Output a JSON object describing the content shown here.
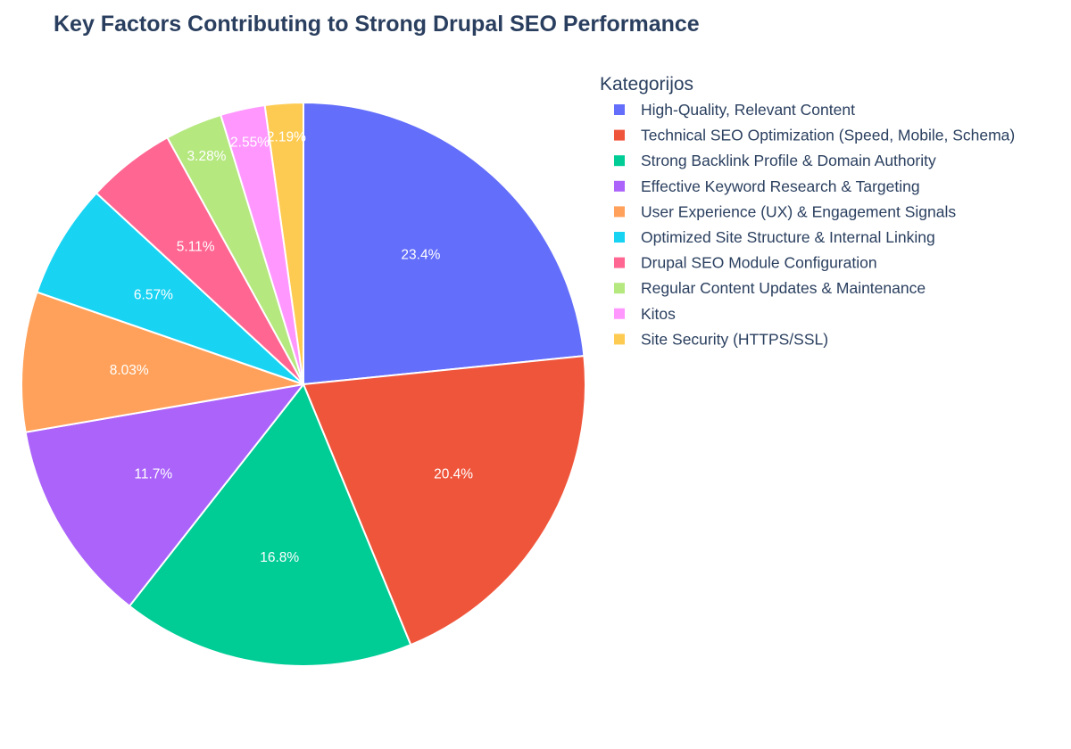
{
  "chart_data": {
    "type": "pie",
    "title": "Key Factors Contributing to Strong Drupal SEO Performance",
    "legend_title": "Kategorijos",
    "legend_position": "right",
    "start_angle_deg": 90,
    "direction": "clockwise",
    "slices": [
      {
        "label": "High-Quality, Relevant Content",
        "value": 23.4,
        "text": "23.4%",
        "color": "#636efa"
      },
      {
        "label": "Technical SEO Optimization (Speed, Mobile, Schema)",
        "value": 20.4,
        "text": "20.4%",
        "color": "#ef553b"
      },
      {
        "label": "Strong Backlink Profile & Domain Authority",
        "value": 16.8,
        "text": "16.8%",
        "color": "#00cc96"
      },
      {
        "label": "Effective Keyword Research & Targeting",
        "value": 11.7,
        "text": "11.7%",
        "color": "#ab63fa"
      },
      {
        "label": "User Experience (UX) & Engagement Signals",
        "value": 8.03,
        "text": "8.03%",
        "color": "#ffa15a"
      },
      {
        "label": "Optimized Site Structure & Internal Linking",
        "value": 6.57,
        "text": "6.57%",
        "color": "#19d3f3"
      },
      {
        "label": "Drupal SEO Module Configuration",
        "value": 5.11,
        "text": "5.11%",
        "color": "#ff6692"
      },
      {
        "label": "Regular Content Updates & Maintenance",
        "value": 3.28,
        "text": "3.28%",
        "color": "#b6e880"
      },
      {
        "label": "Kitos",
        "value": 2.55,
        "text": "2.55%",
        "color": "#ff97ff"
      },
      {
        "label": "Site Security (HTTPS/SSL)",
        "value": 2.19,
        "text": "2.19%",
        "color": "#fecb52"
      }
    ]
  }
}
